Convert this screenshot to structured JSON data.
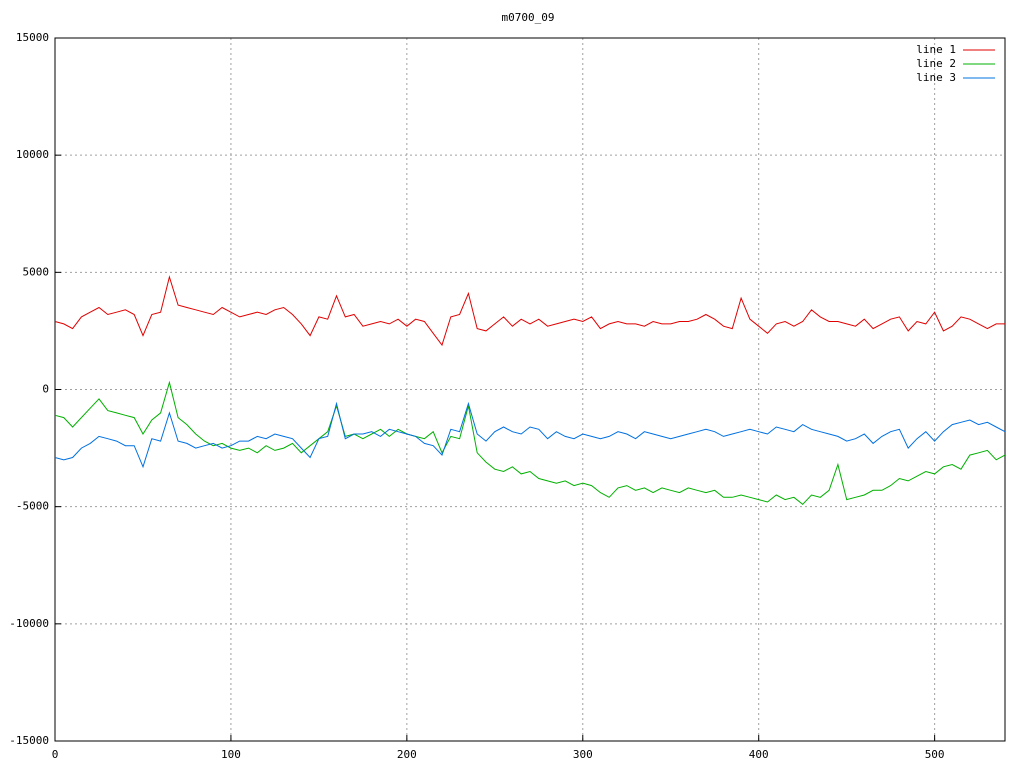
{
  "chart_data": {
    "type": "line",
    "title": "m0700_09",
    "x": [
      0,
      5,
      10,
      15,
      20,
      25,
      30,
      35,
      40,
      45,
      50,
      55,
      60,
      65,
      70,
      75,
      80,
      85,
      90,
      95,
      100,
      105,
      110,
      115,
      120,
      125,
      130,
      135,
      140,
      145,
      150,
      155,
      160,
      165,
      170,
      175,
      180,
      185,
      190,
      195,
      200,
      205,
      210,
      215,
      220,
      225,
      230,
      235,
      240,
      245,
      250,
      255,
      260,
      265,
      270,
      275,
      280,
      285,
      290,
      295,
      300,
      305,
      310,
      315,
      320,
      325,
      330,
      335,
      340,
      345,
      350,
      355,
      360,
      365,
      370,
      375,
      380,
      385,
      390,
      395,
      400,
      405,
      410,
      415,
      420,
      425,
      430,
      435,
      440,
      445,
      450,
      455,
      460,
      465,
      470,
      475,
      480,
      485,
      490,
      495,
      500,
      505,
      510,
      515,
      520,
      525,
      530,
      535,
      540
    ],
    "series": [
      {
        "name": "line 1",
        "color": "#e00000",
        "values": [
          2900,
          2800,
          2600,
          3100,
          3300,
          3500,
          3200,
          3300,
          3400,
          3200,
          2300,
          3200,
          3300,
          4800,
          3600,
          3500,
          3400,
          3300,
          3200,
          3500,
          3300,
          3100,
          3200,
          3300,
          3200,
          3400,
          3500,
          3200,
          2800,
          2300,
          3100,
          3000,
          4000,
          3100,
          3200,
          2700,
          2800,
          2900,
          2800,
          3000,
          2700,
          3000,
          2900,
          2400,
          1900,
          3100,
          3200,
          4100,
          2600,
          2500,
          2800,
          3100,
          2700,
          3000,
          2800,
          3000,
          2700,
          2800,
          2900,
          3000,
          2900,
          3100,
          2600,
          2800,
          2900,
          2800,
          2800,
          2700,
          2900,
          2800,
          2800,
          2900,
          2900,
          3000,
          3200,
          3000,
          2700,
          2600,
          3900,
          3000,
          2700,
          2400,
          2800,
          2900,
          2700,
          2900,
          3400,
          3100,
          2900,
          2900,
          2800,
          2700,
          3000,
          2600,
          2800,
          3000,
          3100,
          2500,
          2900,
          2800,
          3300,
          2500,
          2700,
          3100,
          3000,
          2800,
          2600,
          2800,
          2800
        ]
      },
      {
        "name": "line 2",
        "color": "#00b000",
        "values": [
          -1100,
          -1200,
          -1600,
          -1200,
          -800,
          -400,
          -900,
          -1000,
          -1100,
          -1200,
          -1900,
          -1300,
          -1000,
          300,
          -1200,
          -1500,
          -1900,
          -2200,
          -2400,
          -2300,
          -2500,
          -2600,
          -2500,
          -2700,
          -2400,
          -2600,
          -2500,
          -2300,
          -2700,
          -2400,
          -2100,
          -1800,
          -700,
          -2000,
          -1900,
          -2100,
          -1900,
          -1700,
          -2000,
          -1700,
          -1900,
          -2000,
          -2100,
          -1800,
          -2700,
          -2000,
          -2100,
          -700,
          -2700,
          -3100,
          -3400,
          -3500,
          -3300,
          -3600,
          -3500,
          -3800,
          -3900,
          -4000,
          -3900,
          -4100,
          -4000,
          -4100,
          -4400,
          -4600,
          -4200,
          -4100,
          -4300,
          -4200,
          -4400,
          -4200,
          -4300,
          -4400,
          -4200,
          -4300,
          -4400,
          -4300,
          -4600,
          -4600,
          -4500,
          -4600,
          -4700,
          -4800,
          -4500,
          -4700,
          -4600,
          -4900,
          -4500,
          -4600,
          -4300,
          -3200,
          -4700,
          -4600,
          -4500,
          -4300,
          -4300,
          -4100,
          -3800,
          -3900,
          -3700,
          -3500,
          -3600,
          -3300,
          -3200,
          -3400,
          -2800,
          -2700,
          -2600,
          -3000,
          -2800
        ]
      },
      {
        "name": "line 3",
        "color": "#0070e0",
        "values": [
          -2900,
          -3000,
          -2900,
          -2500,
          -2300,
          -2000,
          -2100,
          -2200,
          -2400,
          -2400,
          -3300,
          -2100,
          -2200,
          -1000,
          -2200,
          -2300,
          -2500,
          -2400,
          -2300,
          -2500,
          -2400,
          -2200,
          -2200,
          -2000,
          -2100,
          -1900,
          -2000,
          -2100,
          -2500,
          -2900,
          -2100,
          -2000,
          -600,
          -2100,
          -1900,
          -1900,
          -1800,
          -2000,
          -1700,
          -1800,
          -1900,
          -2000,
          -2300,
          -2400,
          -2800,
          -1700,
          -1800,
          -600,
          -1900,
          -2200,
          -1800,
          -1600,
          -1800,
          -1900,
          -1600,
          -1700,
          -2100,
          -1800,
          -2000,
          -2100,
          -1900,
          -2000,
          -2100,
          -2000,
          -1800,
          -1900,
          -2100,
          -1800,
          -1900,
          -2000,
          -2100,
          -2000,
          -1900,
          -1800,
          -1700,
          -1800,
          -2000,
          -1900,
          -1800,
          -1700,
          -1800,
          -1900,
          -1600,
          -1700,
          -1800,
          -1500,
          -1700,
          -1800,
          -1900,
          -2000,
          -2200,
          -2100,
          -1900,
          -2300,
          -2000,
          -1800,
          -1700,
          -2500,
          -2100,
          -1800,
          -2200,
          -1800,
          -1500,
          -1400,
          -1300,
          -1500,
          -1400,
          -1600,
          -1800
        ]
      }
    ],
    "xlim": [
      0,
      540
    ],
    "ylim": [
      -15000,
      15000
    ],
    "xticks": [
      0,
      100,
      200,
      300,
      400,
      500
    ],
    "yticks": [
      -15000,
      -10000,
      -5000,
      0,
      5000,
      10000,
      15000
    ],
    "grid": true,
    "legend": "top-right"
  }
}
